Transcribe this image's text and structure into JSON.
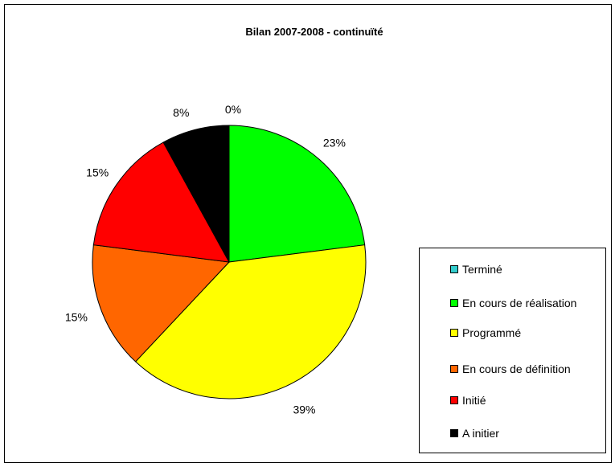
{
  "chart_data": {
    "type": "pie",
    "title": "Bilan 2007-2008 - continuïté",
    "slices": [
      {
        "name": "Terminé",
        "value": 0,
        "label": "0%",
        "color": "#33CCCC"
      },
      {
        "name": "En cours de réalisation",
        "value": 23,
        "label": "23%",
        "color": "#00FF00"
      },
      {
        "name": "Programmé",
        "value": 39,
        "label": "39%",
        "color": "#FFFF00"
      },
      {
        "name": "En cours de définition",
        "value": 15,
        "label": "15%",
        "color": "#FF6600"
      },
      {
        "name": "Initié",
        "value": 15,
        "label": "15%",
        "color": "#FF0000"
      },
      {
        "name": "A initier",
        "value": 8,
        "label": "8%",
        "color": "#000000"
      }
    ],
    "legend_position": "right"
  }
}
